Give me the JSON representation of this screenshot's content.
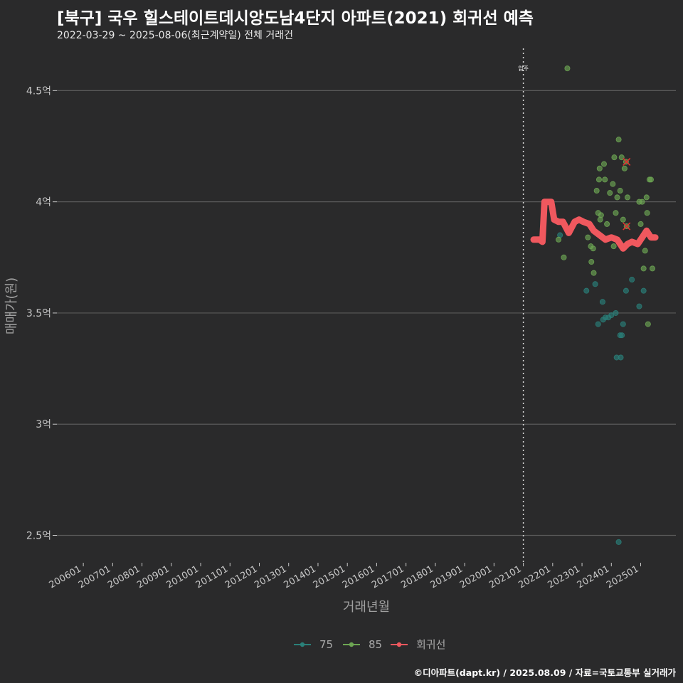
{
  "title": "[북구] 국우 힐스테이트데시앙도남4단지 아파트(2021) 회귀선 예측",
  "subtitle": "2022-03-29 ~ 2025-08-06(최근계약일) 전체 거래건",
  "caption": "©디아파트(dapt.kr) / 2025.08.09 / 자료=국토교통부 실거래가",
  "colors": {
    "s75": "#2a8079",
    "s85": "#6da653",
    "regression": "#f0585e",
    "grid": "#5a5a5a",
    "vline": "#dddddd"
  },
  "chart_data": {
    "type": "scatter",
    "xlabel": "거래년월",
    "ylabel": "매매가(원)",
    "x_unit": "decimal year",
    "xlim": [
      2005.1,
      2026.2
    ],
    "ylim": [
      2.38,
      4.69
    ],
    "y_ticks": [
      {
        "value": 2.5,
        "label": "2.5억"
      },
      {
        "value": 3.0,
        "label": "3억"
      },
      {
        "value": 3.5,
        "label": "3.5억"
      },
      {
        "value": 4.0,
        "label": "4억"
      },
      {
        "value": 4.5,
        "label": "4.5억"
      }
    ],
    "x_ticks": [
      {
        "value": 2006.0,
        "label": "200601"
      },
      {
        "value": 2007.0,
        "label": "200701"
      },
      {
        "value": 2008.0,
        "label": "200801"
      },
      {
        "value": 2009.0,
        "label": "200901"
      },
      {
        "value": 2010.0,
        "label": "201001"
      },
      {
        "value": 2011.0,
        "label": "201101"
      },
      {
        "value": 2012.0,
        "label": "201201"
      },
      {
        "value": 2013.0,
        "label": "201301"
      },
      {
        "value": 2014.0,
        "label": "201401"
      },
      {
        "value": 2015.0,
        "label": "201501"
      },
      {
        "value": 2016.0,
        "label": "201601"
      },
      {
        "value": 2017.0,
        "label": "201701"
      },
      {
        "value": 2018.0,
        "label": "201801"
      },
      {
        "value": 2019.0,
        "label": "201901"
      },
      {
        "value": 2020.0,
        "label": "202001"
      },
      {
        "value": 2021.0,
        "label": "202101"
      },
      {
        "value": 2022.0,
        "label": "202201"
      },
      {
        "value": 2023.0,
        "label": "202301"
      },
      {
        "value": 2024.0,
        "label": "202401"
      },
      {
        "value": 2025.0,
        "label": "202501"
      }
    ],
    "move_in": {
      "x": 2021.0,
      "label": "입주"
    },
    "series": [
      {
        "name": "75",
        "points": [
          [
            2022.25,
            3.85
          ],
          [
            2023.15,
            3.6
          ],
          [
            2023.45,
            3.63
          ],
          [
            2023.55,
            3.45
          ],
          [
            2023.7,
            3.55
          ],
          [
            2023.72,
            3.47
          ],
          [
            2023.8,
            3.48
          ],
          [
            2023.9,
            3.48
          ],
          [
            2024.0,
            3.49
          ],
          [
            2024.15,
            3.5
          ],
          [
            2024.18,
            3.3
          ],
          [
            2024.25,
            2.47
          ],
          [
            2024.32,
            3.3
          ],
          [
            2024.3,
            3.4
          ],
          [
            2024.36,
            3.4
          ],
          [
            2024.4,
            3.45
          ],
          [
            2024.5,
            3.6
          ],
          [
            2024.7,
            3.65
          ],
          [
            2024.95,
            3.53
          ],
          [
            2025.1,
            3.6
          ]
        ]
      },
      {
        "name": "85",
        "points": [
          [
            2022.2,
            3.83
          ],
          [
            2022.38,
            3.75
          ],
          [
            2022.5,
            4.6
          ],
          [
            2023.2,
            3.84
          ],
          [
            2023.3,
            3.8
          ],
          [
            2023.32,
            3.73
          ],
          [
            2023.4,
            3.68
          ],
          [
            2023.38,
            3.79
          ],
          [
            2023.5,
            4.05
          ],
          [
            2023.55,
            3.95
          ],
          [
            2023.58,
            4.1
          ],
          [
            2023.6,
            4.15
          ],
          [
            2023.62,
            3.92
          ],
          [
            2023.65,
            3.94
          ],
          [
            2023.75,
            4.17
          ],
          [
            2023.78,
            4.1
          ],
          [
            2023.85,
            3.9
          ],
          [
            2023.95,
            4.04
          ],
          [
            2024.05,
            4.08
          ],
          [
            2024.08,
            3.8
          ],
          [
            2024.1,
            4.2
          ],
          [
            2024.15,
            3.95
          ],
          [
            2024.2,
            4.02
          ],
          [
            2024.25,
            4.28
          ],
          [
            2024.3,
            4.05
          ],
          [
            2024.35,
            4.2
          ],
          [
            2024.4,
            3.92
          ],
          [
            2024.45,
            4.15
          ],
          [
            2024.5,
            4.18
          ],
          [
            2024.52,
            3.89
          ],
          [
            2024.55,
            4.02
          ],
          [
            2024.95,
            4.0
          ],
          [
            2025.05,
            4.0
          ],
          [
            2025.1,
            3.7
          ],
          [
            2025.15,
            3.78
          ],
          [
            2025.2,
            4.02
          ],
          [
            2025.22,
            3.95
          ],
          [
            2025.25,
            3.45
          ],
          [
            2025.3,
            4.1
          ],
          [
            2025.35,
            4.1
          ],
          [
            2025.4,
            3.7
          ],
          [
            2025.0,
            3.9
          ]
        ]
      },
      {
        "name": "회귀선",
        "points": [
          [
            2021.35,
            3.83
          ],
          [
            2021.55,
            3.83
          ],
          [
            2021.65,
            3.82
          ],
          [
            2021.72,
            4.0
          ],
          [
            2021.95,
            4.0
          ],
          [
            2022.05,
            3.92
          ],
          [
            2022.2,
            3.91
          ],
          [
            2022.35,
            3.91
          ],
          [
            2022.55,
            3.86
          ],
          [
            2022.75,
            3.91
          ],
          [
            2022.9,
            3.92
          ],
          [
            2023.05,
            3.91
          ],
          [
            2023.25,
            3.9
          ],
          [
            2023.4,
            3.87
          ],
          [
            2023.6,
            3.85
          ],
          [
            2023.8,
            3.83
          ],
          [
            2024.0,
            3.84
          ],
          [
            2024.2,
            3.83
          ],
          [
            2024.4,
            3.79
          ],
          [
            2024.55,
            3.81
          ],
          [
            2024.7,
            3.82
          ],
          [
            2024.9,
            3.81
          ],
          [
            2025.05,
            3.84
          ],
          [
            2025.2,
            3.87
          ],
          [
            2025.35,
            3.84
          ],
          [
            2025.5,
            3.84
          ]
        ]
      }
    ],
    "highlighted": [
      [
        2024.52,
        4.18
      ],
      [
        2024.52,
        3.89
      ]
    ]
  }
}
